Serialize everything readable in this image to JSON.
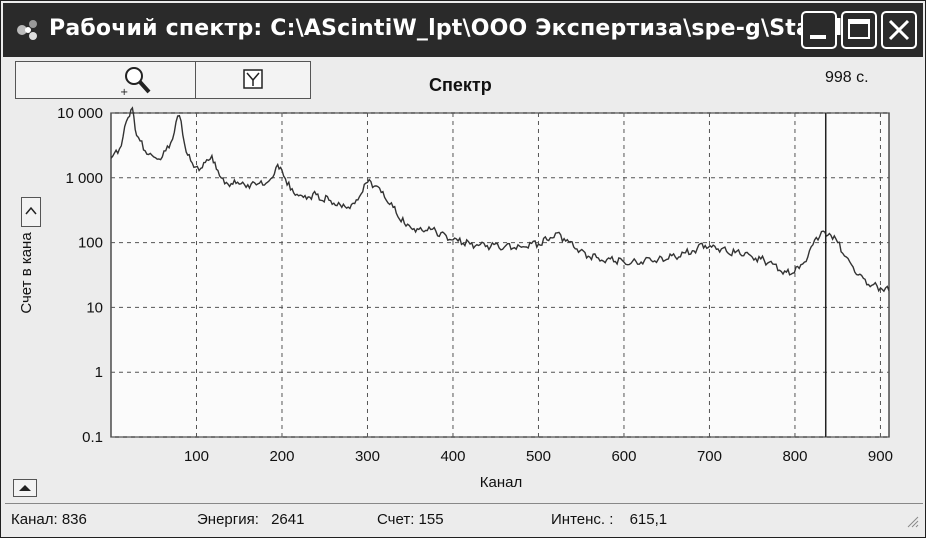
{
  "window": {
    "title": "Рабочий спектр: C:\\AScintiW_lpt\\ООО Экспертиза\\spe-g\\Stabili..."
  },
  "toolbar": {
    "zoom_icon": "magnifier-icon",
    "fit_icon": "axis-fit-icon"
  },
  "chart_header": {
    "title": "Спектр",
    "time": "998 с."
  },
  "chart_data": {
    "type": "line",
    "title": "Спектр",
    "xlabel": "Канал",
    "ylabel": "Счет в кана",
    "xlim": [
      0,
      910
    ],
    "ylim": [
      0.1,
      10000
    ],
    "yscale": "log",
    "x_ticks": [
      "100",
      "200",
      "300",
      "400",
      "500",
      "600",
      "700",
      "800",
      "900"
    ],
    "y_ticks": [
      "10 000",
      "1 000",
      "100",
      "10",
      "1",
      "0.1"
    ],
    "grid": true,
    "cursor_channel": 836,
    "series": [
      {
        "x": [
          0,
          10,
          20,
          25,
          30,
          40,
          50,
          60,
          70,
          78,
          82,
          88,
          95,
          105,
          112,
          118,
          125,
          135,
          150,
          170,
          185,
          195,
          200,
          210,
          225,
          240,
          255,
          270,
          285,
          300,
          310,
          320,
          330,
          345,
          360,
          380,
          400,
          420,
          440,
          460,
          480,
          500,
          510,
          520,
          530,
          545,
          560,
          580,
          600,
          620,
          640,
          660,
          680,
          695,
          710,
          730,
          750,
          770,
          790,
          805,
          815,
          825,
          835,
          842,
          850,
          860,
          870,
          880,
          890,
          900,
          910
        ],
        "y": [
          2000,
          2800,
          8500,
          12000,
          4500,
          2600,
          2100,
          2100,
          3500,
          9000,
          7500,
          2500,
          1700,
          1400,
          1900,
          2200,
          1300,
          850,
          800,
          780,
          900,
          1600,
          1300,
          650,
          500,
          550,
          450,
          350,
          400,
          850,
          750,
          500,
          350,
          180,
          160,
          150,
          110,
          95,
          90,
          85,
          85,
          95,
          110,
          140,
          115,
          80,
          60,
          55,
          50,
          50,
          55,
          60,
          75,
          90,
          80,
          70,
          60,
          50,
          35,
          40,
          60,
          120,
          145,
          130,
          100,
          60,
          35,
          28,
          22,
          20,
          18
        ]
      }
    ]
  },
  "status": {
    "channel_label": "Канал:",
    "channel_value": "836",
    "energy_label": "Энергия:",
    "energy_value": "2641",
    "count_label": "Счет:",
    "count_value": "155",
    "intensity_label": "Интенс. :",
    "intensity_value": "615,1"
  }
}
